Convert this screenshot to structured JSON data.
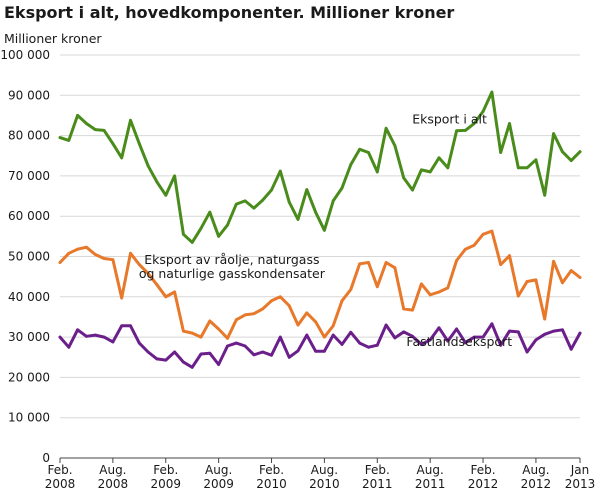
{
  "chart_data": {
    "type": "line",
    "title": "Eksport i alt, hovedkomponenter. Millioner kroner",
    "ylabel": "Millioner kroner",
    "xlabel": "",
    "ylim": [
      0,
      100000
    ],
    "y_ticks": [
      0,
      10000,
      20000,
      30000,
      40000,
      50000,
      60000,
      70000,
      80000,
      90000,
      100000
    ],
    "y_tick_labels": [
      "0",
      "10 000",
      "20 000",
      "30 000",
      "40 000",
      "50 000",
      "60 000",
      "70 000",
      "80 000",
      "90 000",
      "100 000"
    ],
    "x_ticks": [
      {
        "index": 0,
        "line1": "Feb.",
        "line2": "2008"
      },
      {
        "index": 6,
        "line1": "Aug.",
        "line2": "2008"
      },
      {
        "index": 12,
        "line1": "Feb.",
        "line2": "2009"
      },
      {
        "index": 18,
        "line1": "Aug.",
        "line2": "2009"
      },
      {
        "index": 24,
        "line1": "Feb.",
        "line2": "2010"
      },
      {
        "index": 30,
        "line1": "Aug.",
        "line2": "2010"
      },
      {
        "index": 36,
        "line1": "Feb.",
        "line2": "2011"
      },
      {
        "index": 42,
        "line1": "Aug.",
        "line2": "2011"
      },
      {
        "index": 48,
        "line1": "Feb.",
        "line2": "2012"
      },
      {
        "index": 54,
        "line1": "Aug.",
        "line2": "2012"
      },
      {
        "index": 59,
        "line1": "Jan",
        "line2": "2013"
      }
    ],
    "x_count": 60,
    "grid": "horizontal",
    "series": [
      {
        "name": "Eksport i alt",
        "color": "#4a8c1c",
        "values": [
          79500,
          78800,
          85000,
          83000,
          81500,
          81300,
          78000,
          74500,
          83800,
          78000,
          72500,
          68500,
          65200,
          70000,
          55500,
          53500,
          57000,
          61000,
          55000,
          57800,
          63000,
          63800,
          62000,
          64000,
          66500,
          71200,
          63500,
          59200,
          66600,
          61000,
          56500,
          63800,
          67000,
          72800,
          76600,
          75800,
          71000,
          81800,
          77500,
          69500,
          66500,
          71500,
          71000,
          74500,
          72000,
          81200,
          81300,
          83000,
          86000,
          90800,
          75800,
          83000,
          72000,
          72000,
          74000,
          65200,
          80500,
          76000,
          73800,
          76000
        ]
      },
      {
        "name": "Eksport av råolje, naturgass og naturlige gasskondensater",
        "color": "#e8782a",
        "values": [
          48500,
          50800,
          51800,
          52300,
          50500,
          49500,
          49200,
          39700,
          50800,
          48000,
          45800,
          43000,
          40000,
          41200,
          31500,
          31000,
          30000,
          34000,
          32000,
          29700,
          34300,
          35500,
          35800,
          37000,
          39000,
          40000,
          37800,
          33000,
          36000,
          33800,
          30000,
          32800,
          39000,
          41800,
          48200,
          48500,
          42500,
          48500,
          47200,
          37000,
          36700,
          43200,
          40500,
          41200,
          42200,
          49000,
          51800,
          52800,
          55500,
          56300,
          48000,
          50200,
          40200,
          43800,
          44200,
          34500,
          48800,
          43500,
          46500,
          44800
        ]
      },
      {
        "name": "Fastlandseksport",
        "color": "#6b1f8a",
        "values": [
          30000,
          27500,
          31800,
          30200,
          30500,
          30000,
          28800,
          32800,
          32800,
          28500,
          26300,
          24600,
          24300,
          26300,
          23800,
          22500,
          25800,
          26000,
          23200,
          27800,
          28500,
          27800,
          25600,
          26300,
          25500,
          30000,
          25000,
          26600,
          30500,
          26500,
          26500,
          30500,
          28200,
          31200,
          28500,
          27500,
          28000,
          33000,
          29800,
          31300,
          30200,
          28200,
          29300,
          32300,
          29000,
          32000,
          28600,
          30000,
          30000,
          33300,
          28000,
          31500,
          31300,
          26300,
          29300,
          30700,
          31500,
          31800,
          27000,
          31000
        ]
      }
    ],
    "annotations": [
      {
        "series": 0,
        "lines": [
          "Eksport i alt"
        ],
        "x_index": 44.2,
        "y": 83000
      },
      {
        "series": 1,
        "lines": [
          "Eksport av råolje, naturgass",
          "og naturlige gasskondensater"
        ],
        "x_index": 19.5,
        "y": 48200
      },
      {
        "series": 2,
        "lines": [
          "Fastlandseksport"
        ],
        "x_index": 45.3,
        "y": 27800
      }
    ]
  }
}
